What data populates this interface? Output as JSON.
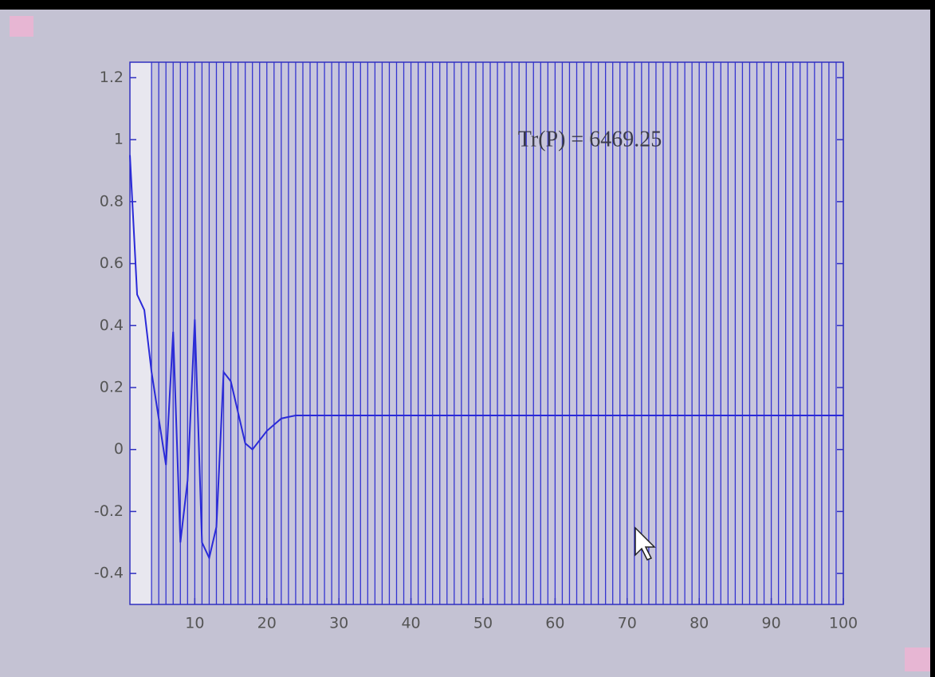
{
  "chart_data": {
    "type": "line",
    "annotation": "Tr(P) = 6469.25",
    "x": [
      1,
      2,
      3,
      4,
      5,
      6,
      7,
      8,
      9,
      10,
      11,
      12,
      13,
      14,
      15,
      16,
      17,
      18,
      19,
      20,
      21,
      22,
      23,
      24,
      25,
      100
    ],
    "values": [
      0.95,
      0.5,
      0.45,
      0.25,
      0.1,
      -0.05,
      0.38,
      -0.3,
      -0.1,
      0.42,
      -0.3,
      -0.35,
      -0.25,
      0.25,
      0.22,
      0.12,
      0.02,
      0.0,
      0.03,
      0.06,
      0.08,
      0.1,
      0.105,
      0.11,
      0.11,
      0.11
    ],
    "color": "#2a2ad8",
    "vertical_lines": [
      4,
      5,
      6,
      7,
      8,
      9,
      10,
      11,
      12,
      13,
      14,
      15,
      16,
      17,
      18,
      19,
      20,
      21,
      22,
      23,
      24,
      25,
      26,
      27,
      28,
      29,
      30,
      31,
      32,
      33,
      34,
      35,
      36,
      37,
      38,
      39,
      40,
      41,
      42,
      43,
      44,
      45,
      46,
      47,
      48,
      49,
      50,
      51,
      52,
      53,
      54,
      55,
      56,
      57,
      58,
      59,
      60,
      61,
      62,
      63,
      64,
      65,
      66,
      67,
      68,
      69,
      70,
      71,
      72,
      73,
      74,
      75,
      76,
      77,
      78,
      79,
      80,
      81,
      82,
      83,
      84,
      85,
      86,
      87,
      88,
      89,
      90,
      91,
      92,
      93,
      94,
      95,
      96,
      97,
      98,
      99,
      100
    ],
    "vertical_line_color": "#3434d0",
    "xlim": [
      1,
      100
    ],
    "ylim": [
      -0.5,
      1.25
    ],
    "xticks": [
      10,
      20,
      30,
      40,
      50,
      60,
      70,
      80,
      90,
      100
    ],
    "yticks": [
      -0.4,
      -0.2,
      0,
      0.2,
      0.4,
      0.6,
      0.8,
      1,
      1.2
    ]
  }
}
